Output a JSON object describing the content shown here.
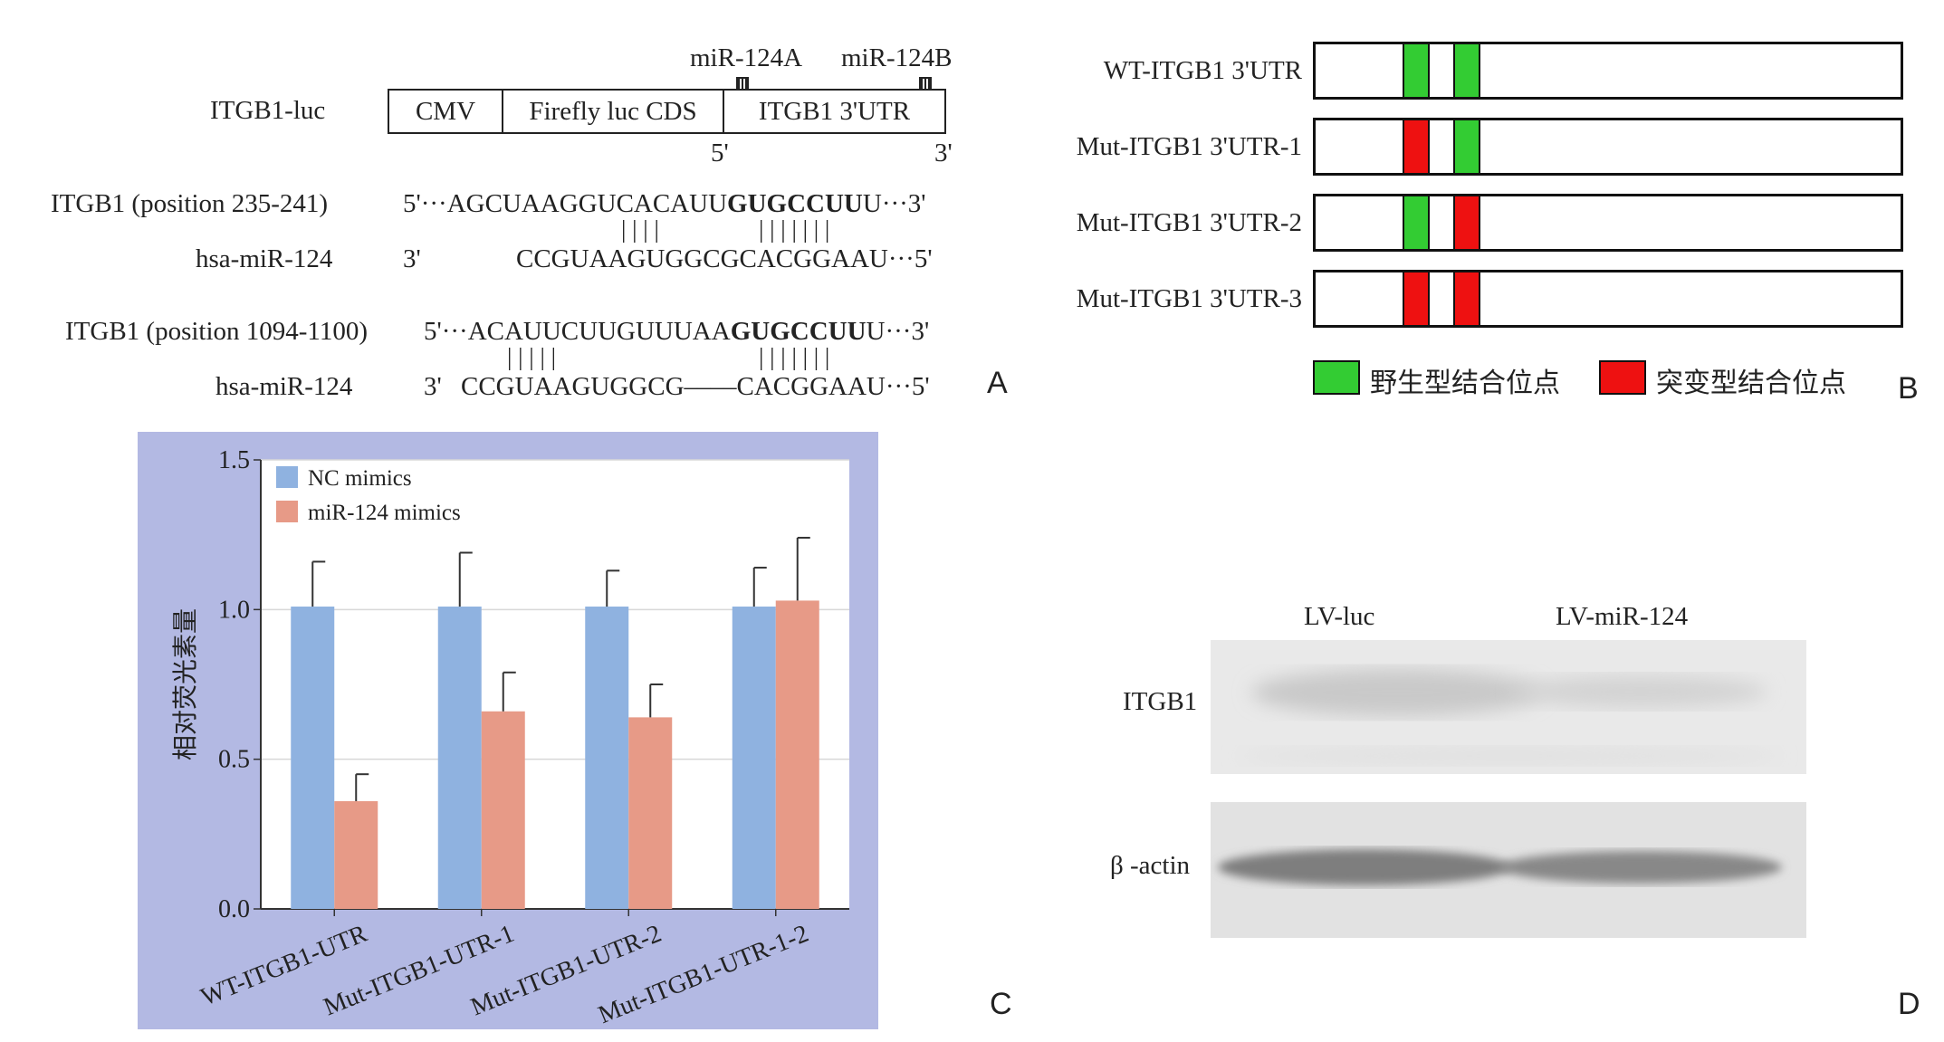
{
  "panel_letters": {
    "a": "A",
    "b": "B",
    "c": "C",
    "d": "D"
  },
  "panel_a": {
    "construct_label": "ITGB1-luc",
    "segments": [
      "CMV",
      "Firefly luc CDS",
      "ITGB1 3'UTR"
    ],
    "site_labels": [
      "miR-124A",
      "miR-124B"
    ],
    "end5": "5'",
    "end3": "3'",
    "alignments": [
      {
        "target_label": "ITGB1 (position 235-241)",
        "target_prefix": "5'···AGCUAAGGUCACAUU",
        "target_seed": "GUGCCUU",
        "target_suffix": "U···3'",
        "pairs_left": "| | | |",
        "pairs_right": "| | | | | | |",
        "mirna_label": "hsa-miR-124",
        "mirna_3": "3'",
        "mirna_seq": "CCGUAAGUGGCGCACGGAAU···5'"
      },
      {
        "target_label": "ITGB1 (position 1094-1100)",
        "target_prefix": "5'···ACAUUCUUGUUUAA",
        "target_seed": "GUGCCUU",
        "target_suffix": "U···3'",
        "pairs_left": "| | | | |",
        "pairs_right": "| | | | | | |",
        "mirna_label": "hsa-miR-124",
        "mirna_3": "3'",
        "mirna_seq": "CCGUAAGUGGCG––––CACGGAAU···5'"
      }
    ]
  },
  "panel_b": {
    "constructs": [
      {
        "label": "WT-ITGB1 3'UTR",
        "site1": "wild",
        "site2": "wild"
      },
      {
        "label": "Mut-ITGB1 3'UTR-1",
        "site1": "mutant",
        "site2": "wild"
      },
      {
        "label": "Mut-ITGB1 3'UTR-2",
        "site1": "wild",
        "site2": "mutant"
      },
      {
        "label": "Mut-ITGB1 3'UTR-3",
        "site1": "mutant",
        "site2": "mutant"
      }
    ],
    "legend": {
      "wild": "野生型结合位点",
      "mutant": "突变型结合位点"
    },
    "colors": {
      "wild": "#33cc33",
      "mutant": "#ee1111"
    }
  },
  "chart_data": {
    "type": "bar",
    "categories": [
      "WT-ITGB1-UTR",
      "Mut-ITGB1-UTR-1",
      "Mut-ITGB1-UTR-2",
      "Mut-ITGB1-UTR-1-2"
    ],
    "series": [
      {
        "name": "NC mimics",
        "values": [
          1.01,
          1.01,
          1.01,
          1.01
        ],
        "errors": [
          0.15,
          0.18,
          0.12,
          0.13
        ],
        "color": "#8fb2e0"
      },
      {
        "name": "miR-124 mimics",
        "values": [
          0.36,
          0.66,
          0.64,
          1.03
        ],
        "errors": [
          0.09,
          0.13,
          0.11,
          0.21
        ],
        "color": "#e79a87"
      }
    ],
    "ylabel": "相对荧光素量",
    "xlabel": "",
    "ylim": [
      0.0,
      1.5
    ],
    "yticks": [
      "0.0",
      "0.5",
      "1.0",
      "1.5"
    ],
    "grid": true,
    "legend_position": "top-left",
    "background": "#b3b9e3"
  },
  "panel_d": {
    "lanes": [
      "LV-luc",
      "LV-miR-124"
    ],
    "rows": [
      "ITGB1",
      "β -actin"
    ]
  }
}
